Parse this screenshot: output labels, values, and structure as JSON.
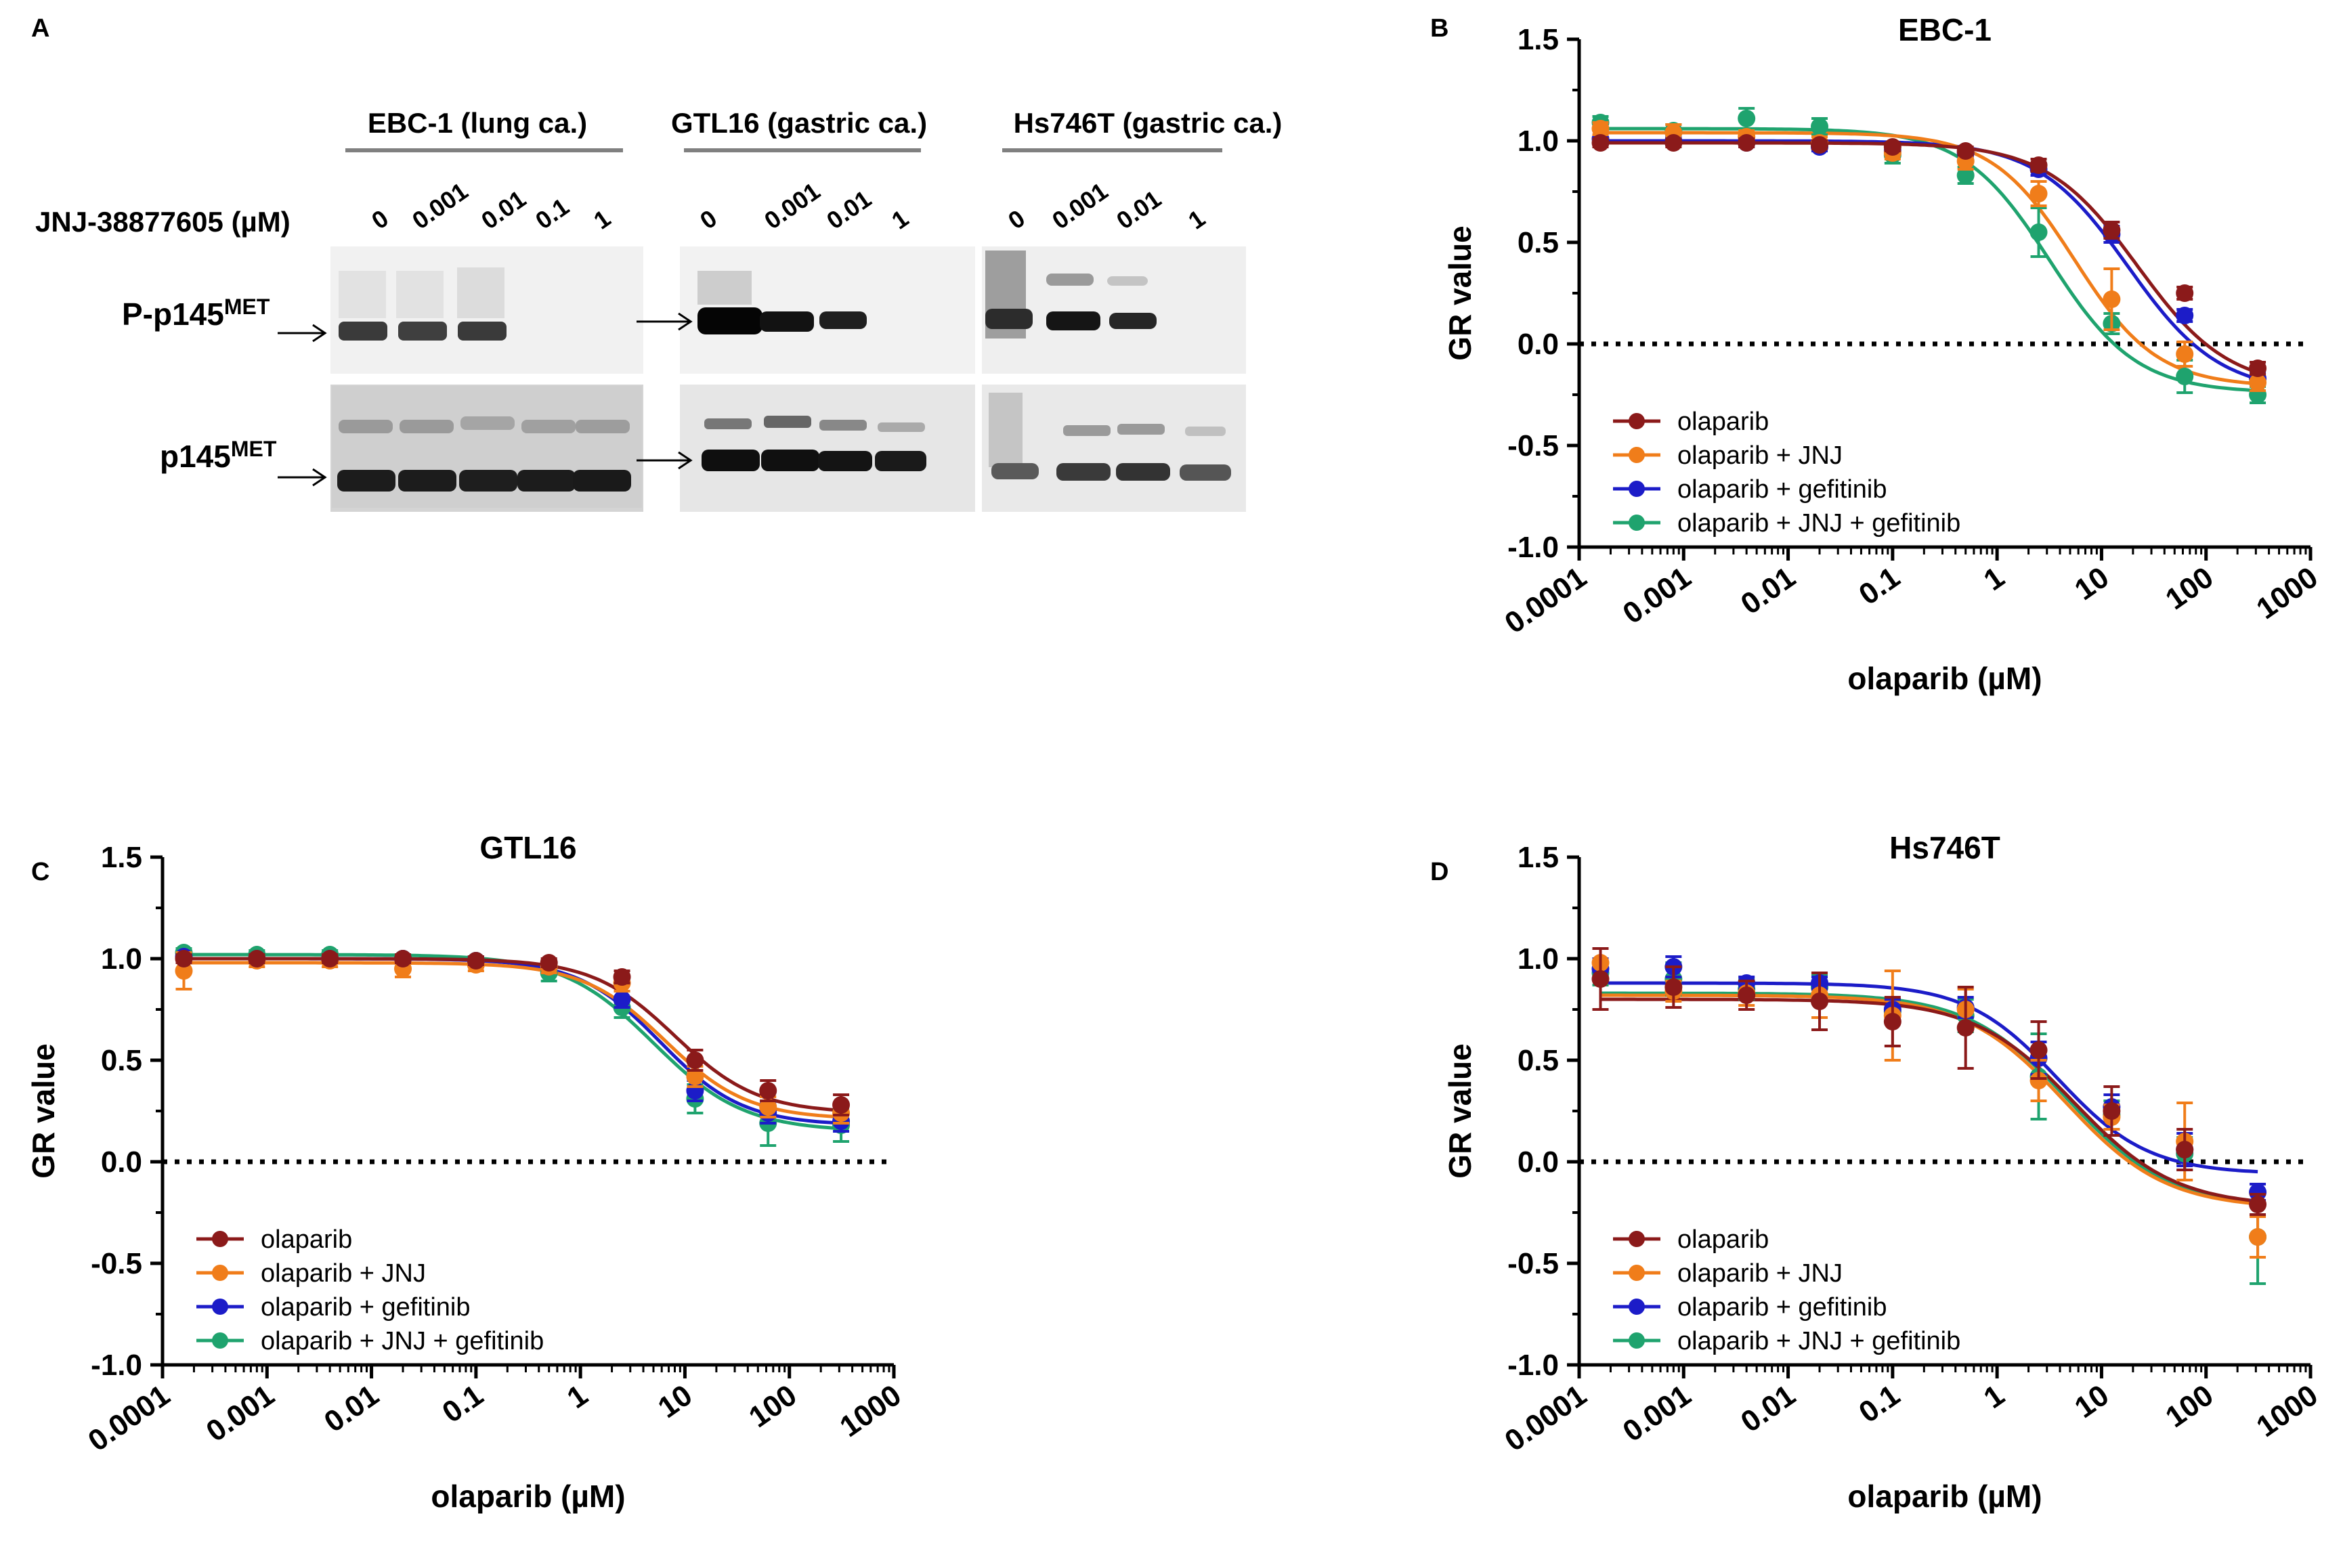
{
  "colors": {
    "olaparib": "#8b1a1a",
    "olaparib_jnj": "#f07d1a",
    "olaparib_gef": "#1c1cc8",
    "olaparib_jnj_gef": "#1fa36e"
  },
  "panel_a": {
    "letter": "A",
    "dose_label": "JNJ-38877605 (µM)",
    "row_labels": [
      {
        "main": "P-p145",
        "sup": "MET"
      },
      {
        "main": "p145",
        "sup": "MET"
      }
    ],
    "cell_lines": [
      {
        "label": "EBC-1 (lung ca.)",
        "doses": [
          "0",
          "0.001",
          "0.01",
          "0.1",
          "1"
        ]
      },
      {
        "label": "GTL16 (gastric ca.)",
        "doses": [
          "0",
          "0.001",
          "0.01",
          "1"
        ]
      },
      {
        "label": "Hs746T (gastric ca.)",
        "doses": [
          "0",
          "0.001",
          "0.01",
          "1"
        ]
      }
    ]
  },
  "chart_data": [
    {
      "panel": "B",
      "type": "line",
      "title": "EBC-1",
      "xlabel": "olaparib (µM)",
      "ylabel": "GR value",
      "xscale": "log",
      "xlim": [
        0.0001,
        1000
      ],
      "ylim": [
        -1.0,
        1.5
      ],
      "xticks": [
        "0.0001",
        "0.001",
        "0.01",
        "0.1",
        "1",
        "10",
        "100",
        "1000"
      ],
      "yticks": [
        "-1.0",
        "-0.5",
        "0.0",
        "0.5",
        "1.0",
        "1.5"
      ],
      "reference_line": 0,
      "legend_position": "bottom-left",
      "x": [
        0.00016,
        0.0008,
        0.004,
        0.02,
        0.1,
        0.5,
        2.5,
        12.5,
        62.5,
        312.5
      ],
      "series": [
        {
          "name": "olaparib",
          "color_key": "olaparib",
          "values": [
            0.99,
            0.99,
            0.99,
            0.98,
            0.97,
            0.95,
            0.88,
            0.56,
            0.25,
            -0.12
          ],
          "errors": [
            0.02,
            0.02,
            0.02,
            0.02,
            0.02,
            0.02,
            0.03,
            0.04,
            0.03,
            0.03
          ]
        },
        {
          "name": "olaparib + JNJ",
          "color_key": "olaparib_jnj",
          "values": [
            1.06,
            1.04,
            1.02,
            0.99,
            0.94,
            0.9,
            0.74,
            0.22,
            -0.05,
            -0.19
          ],
          "errors": [
            0.03,
            0.04,
            0.03,
            0.03,
            0.03,
            0.04,
            0.06,
            0.15,
            0.06,
            0.04
          ]
        },
        {
          "name": "olaparib + gefitinib",
          "color_key": "olaparib_gef",
          "values": [
            1.01,
            1.0,
            0.99,
            0.97,
            0.95,
            0.94,
            0.86,
            0.54,
            0.14,
            -0.17
          ],
          "errors": [
            0.02,
            0.02,
            0.02,
            0.02,
            0.02,
            0.02,
            0.03,
            0.04,
            0.03,
            0.03
          ]
        },
        {
          "name": "olaparib + JNJ + gefitinib",
          "color_key": "olaparib_jnj_gef",
          "values": [
            1.09,
            1.05,
            1.11,
            1.07,
            0.93,
            0.83,
            0.55,
            0.1,
            -0.16,
            -0.25
          ],
          "errors": [
            0.03,
            0.03,
            0.05,
            0.04,
            0.04,
            0.04,
            0.12,
            0.05,
            0.08,
            0.04
          ]
        }
      ],
      "fit": {
        "olaparib": {
          "top": 0.99,
          "bottom": -0.22,
          "ec50": 22,
          "hill": 1.0
        },
        "olaparib_jnj": {
          "top": 1.04,
          "bottom": -0.21,
          "ec50": 5.5,
          "hill": 1.1
        },
        "olaparib_gef": {
          "top": 1.0,
          "bottom": -0.24,
          "ec50": 18,
          "hill": 1.0
        },
        "olaparib_jnj_gef": {
          "top": 1.06,
          "bottom": -0.24,
          "ec50": 3.2,
          "hill": 1.05
        }
      }
    },
    {
      "panel": "C",
      "type": "line",
      "title": "GTL16",
      "xlabel": "olaparib (µM)",
      "ylabel": "GR value",
      "xscale": "log",
      "xlim": [
        0.0001,
        1000
      ],
      "ylim": [
        -1.0,
        1.5
      ],
      "xticks": [
        "0.0001",
        "0.001",
        "0.01",
        "0.1",
        "1",
        "10",
        "100",
        "1000"
      ],
      "yticks": [
        "-1.0",
        "-0.5",
        "0.0",
        "0.5",
        "1.0",
        "1.5"
      ],
      "reference_line": 0,
      "legend_position": "bottom-left",
      "x": [
        0.00016,
        0.0008,
        0.004,
        0.02,
        0.1,
        0.5,
        2.5,
        12.5,
        62.5,
        312.5
      ],
      "series": [
        {
          "name": "olaparib",
          "color_key": "olaparib",
          "values": [
            1.0,
            1.0,
            1.0,
            1.0,
            0.99,
            0.98,
            0.91,
            0.5,
            0.35,
            0.28
          ],
          "errors": [
            0.02,
            0.02,
            0.02,
            0.02,
            0.02,
            0.02,
            0.03,
            0.05,
            0.05,
            0.05
          ]
        },
        {
          "name": "olaparib + JNJ",
          "color_key": "olaparib_jnj",
          "values": [
            0.94,
            0.99,
            0.99,
            0.95,
            0.97,
            0.96,
            0.88,
            0.42,
            0.27,
            0.24
          ],
          "errors": [
            0.09,
            0.03,
            0.03,
            0.04,
            0.03,
            0.03,
            0.04,
            0.05,
            0.05,
            0.05
          ]
        },
        {
          "name": "olaparib + gefitinib",
          "color_key": "olaparib_gef",
          "values": [
            1.01,
            1.0,
            1.0,
            1.0,
            0.99,
            0.96,
            0.8,
            0.35,
            0.24,
            0.2
          ],
          "errors": [
            0.02,
            0.02,
            0.02,
            0.02,
            0.02,
            0.03,
            0.04,
            0.05,
            0.05,
            0.05
          ]
        },
        {
          "name": "olaparib + JNJ + gefitinib",
          "color_key": "olaparib_jnj_gef",
          "values": [
            1.03,
            1.02,
            1.02,
            1.0,
            0.99,
            0.93,
            0.76,
            0.31,
            0.19,
            0.18
          ],
          "errors": [
            0.02,
            0.02,
            0.02,
            0.02,
            0.02,
            0.04,
            0.05,
            0.07,
            0.11,
            0.08
          ]
        }
      ],
      "fit": {
        "olaparib": {
          "top": 1.0,
          "bottom": 0.24,
          "ec50": 8.0,
          "hill": 1.1
        },
        "olaparib_jnj": {
          "top": 0.98,
          "bottom": 0.21,
          "ec50": 6.5,
          "hill": 1.1
        },
        "olaparib_gef": {
          "top": 1.0,
          "bottom": 0.18,
          "ec50": 5.8,
          "hill": 1.1
        },
        "olaparib_jnj_gef": {
          "top": 1.02,
          "bottom": 0.15,
          "ec50": 5.0,
          "hill": 1.0
        }
      }
    },
    {
      "panel": "D",
      "type": "line",
      "title": "Hs746T",
      "xlabel": "olaparib (µM)",
      "ylabel": "GR value",
      "xscale": "log",
      "xlim": [
        0.0001,
        1000
      ],
      "ylim": [
        -1.0,
        1.5
      ],
      "xticks": [
        "0.0001",
        "0.001",
        "0.01",
        "0.1",
        "1",
        "10",
        "100",
        "1000"
      ],
      "yticks": [
        "-1.0",
        "-0.5",
        "0.0",
        "0.5",
        "1.0",
        "1.5"
      ],
      "reference_line": 0,
      "legend_position": "bottom-left",
      "x": [
        0.00016,
        0.0008,
        0.004,
        0.02,
        0.1,
        0.5,
        2.5,
        12.5,
        62.5,
        312.5
      ],
      "series": [
        {
          "name": "olaparib",
          "color_key": "olaparib",
          "values": [
            0.9,
            0.86,
            0.82,
            0.79,
            0.69,
            0.66,
            0.55,
            0.25,
            0.06,
            -0.21
          ],
          "errors": [
            0.15,
            0.1,
            0.07,
            0.14,
            0.12,
            0.2,
            0.14,
            0.12,
            0.1,
            0.05
          ]
        },
        {
          "name": "olaparib + JNJ",
          "color_key": "olaparib_jnj",
          "values": [
            0.98,
            0.84,
            0.83,
            0.82,
            0.72,
            0.75,
            0.4,
            0.22,
            0.1,
            -0.37
          ],
          "errors": [
            0.07,
            0.05,
            0.06,
            0.11,
            0.22,
            0.1,
            0.1,
            0.06,
            0.19,
            0.1
          ]
        },
        {
          "name": "olaparib + gefitinib",
          "color_key": "olaparib_gef",
          "values": [
            0.95,
            0.96,
            0.88,
            0.88,
            0.75,
            0.76,
            0.51,
            0.27,
            0.06,
            -0.15
          ],
          "errors": [
            0.05,
            0.05,
            0.03,
            0.03,
            0.05,
            0.05,
            0.08,
            0.06,
            0.08,
            0.04
          ]
        },
        {
          "name": "olaparib + JNJ + gefitinib",
          "color_key": "olaparib_jnj_gef",
          "values": [
            0.93,
            0.9,
            0.85,
            0.86,
            0.74,
            0.72,
            0.42,
            0.23,
            0.04,
            -0.37
          ],
          "errors": [
            0.06,
            0.08,
            0.05,
            0.06,
            0.06,
            0.08,
            0.21,
            0.07,
            0.08,
            0.23
          ]
        }
      ],
      "fit": {
        "olaparib": {
          "top": 0.8,
          "bottom": -0.22,
          "ec50": 5.5,
          "hill": 0.9
        },
        "olaparib_jnj": {
          "top": 0.82,
          "bottom": -0.23,
          "ec50": 4.5,
          "hill": 0.9
        },
        "olaparib_gef": {
          "top": 0.88,
          "bottom": -0.06,
          "ec50": 3.8,
          "hill": 1.0
        },
        "olaparib_jnj_gef": {
          "top": 0.83,
          "bottom": -0.22,
          "ec50": 4.8,
          "hill": 0.9
        }
      }
    }
  ]
}
